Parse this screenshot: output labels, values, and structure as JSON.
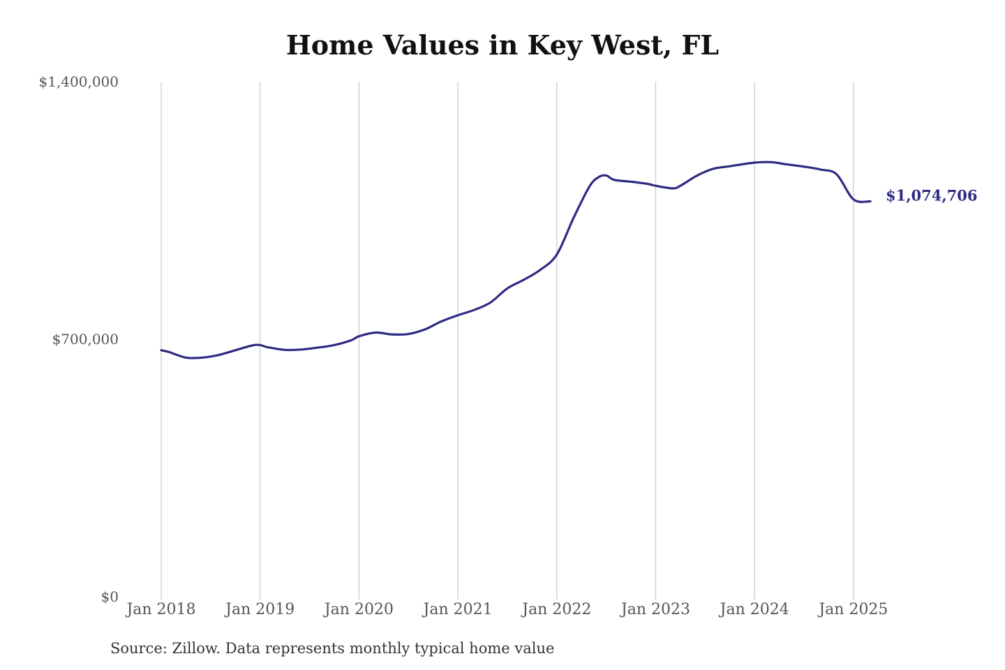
{
  "chart_data": {
    "type": "line",
    "title": "Home Values in Key West, FL",
    "xlabel": "",
    "ylabel": "",
    "ylim": [
      0,
      1400000
    ],
    "y_ticks": [
      {
        "value": 0,
        "label": "$0"
      },
      {
        "value": 700000,
        "label": "$700,000"
      },
      {
        "value": 1400000,
        "label": "$1,400,000"
      }
    ],
    "x_ticks": [
      {
        "value": 2018.0,
        "label": "Jan 2018"
      },
      {
        "value": 2019.0,
        "label": "Jan 2019"
      },
      {
        "value": 2020.0,
        "label": "Jan 2020"
      },
      {
        "value": 2021.0,
        "label": "Jan 2021"
      },
      {
        "value": 2022.0,
        "label": "Jan 2022"
      },
      {
        "value": 2023.0,
        "label": "Jan 2023"
      },
      {
        "value": 2024.0,
        "label": "Jan 2024"
      },
      {
        "value": 2025.0,
        "label": "Jan 2025"
      }
    ],
    "grid": "vertical",
    "line_color": "#2e2b82",
    "end_label": "$1,074,706",
    "series": [
      {
        "x": [
          2018.0,
          2018.08,
          2018.25,
          2018.42,
          2018.58,
          2018.75,
          2018.92,
          2019.0,
          2019.08,
          2019.25,
          2019.42,
          2019.58,
          2019.75,
          2019.92,
          2020.0,
          2020.17,
          2020.33,
          2020.5,
          2020.67,
          2020.83,
          2021.0,
          2021.17,
          2021.33,
          2021.5,
          2021.67,
          2021.83,
          2022.0,
          2022.17,
          2022.33,
          2022.42,
          2022.5,
          2022.58,
          2022.75,
          2022.92,
          2023.0,
          2023.17,
          2023.25,
          2023.42,
          2023.58,
          2023.75,
          2024.0,
          2024.17,
          2024.33,
          2024.5,
          2024.67,
          2024.83,
          2025.0,
          2025.17
        ],
        "values": [
          670000,
          665000,
          650000,
          650000,
          657000,
          670000,
          683000,
          684000,
          678000,
          671000,
          672000,
          677000,
          684000,
          697000,
          708000,
          718000,
          713000,
          714000,
          727000,
          748000,
          765000,
          780000,
          800000,
          838000,
          862000,
          888000,
          930000,
          1030000,
          1115000,
          1140000,
          1145000,
          1133000,
          1128000,
          1122000,
          1117000,
          1110000,
          1117000,
          1145000,
          1163000,
          1170000,
          1180000,
          1181000,
          1175000,
          1169000,
          1161000,
          1148000,
          1080000,
          1074706
        ]
      }
    ]
  },
  "source_note": "Source: Zillow. Data represents monthly typical home value"
}
